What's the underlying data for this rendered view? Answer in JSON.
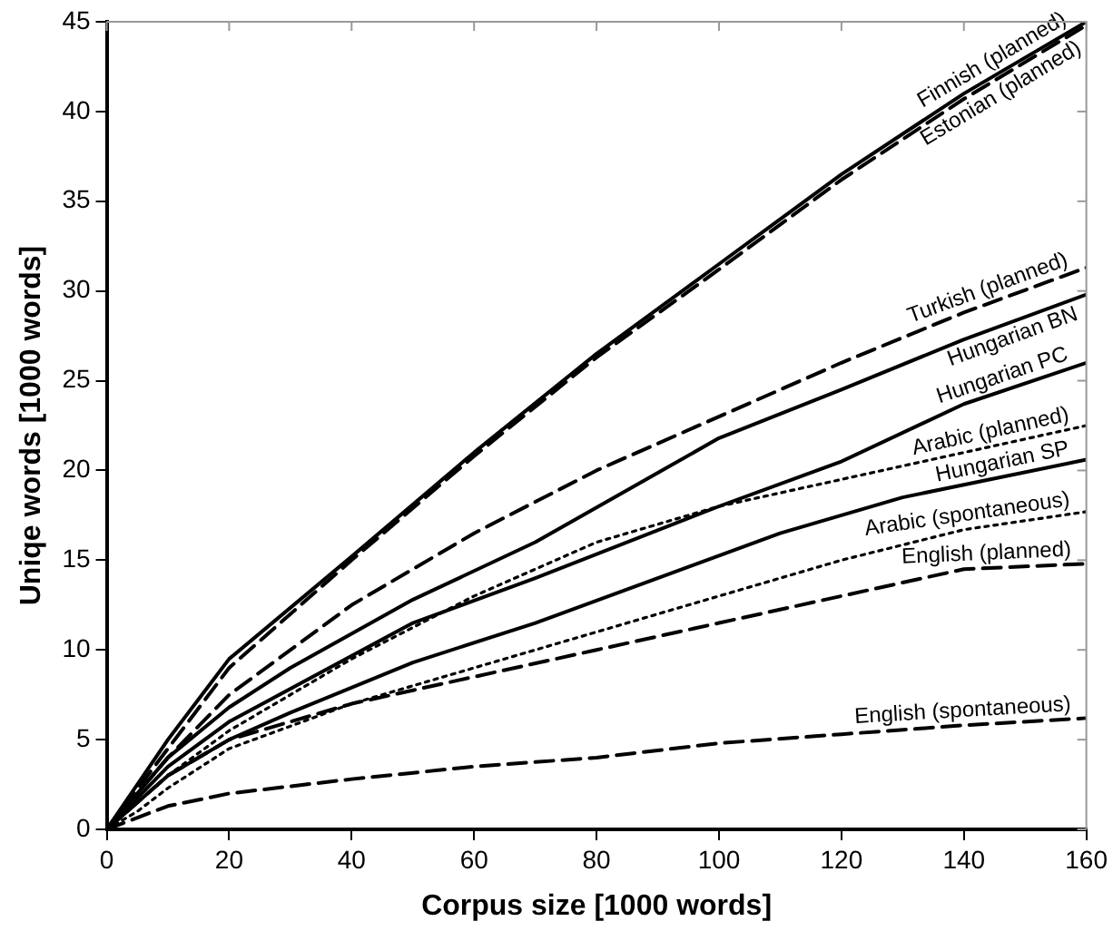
{
  "chart_data": {
    "type": "line",
    "xlabel": "Corpus size [1000 words]",
    "ylabel": "Uniqe words [1000 words]",
    "xlim": [
      0,
      160
    ],
    "xticks": [
      0,
      20,
      40,
      60,
      80,
      100,
      120,
      140,
      160
    ],
    "ylim": [
      0,
      45
    ],
    "yticks": [
      0,
      5,
      10,
      15,
      20,
      25,
      30,
      35,
      40,
      45
    ],
    "grid": false,
    "legend": false,
    "marker": "none",
    "series": [
      {
        "name": "Finnish (planned)",
        "color": "#000000",
        "line_style": "solid",
        "x": [
          0,
          10,
          20,
          40,
          60,
          80,
          100,
          120,
          140,
          160
        ],
        "values": [
          0,
          5,
          9.5,
          15.2,
          21,
          26.5,
          31.5,
          36.5,
          41,
          45
        ]
      },
      {
        "name": "Estonian (planned)",
        "color": "#000000",
        "line_style": "dashed",
        "x": [
          0,
          10,
          20,
          40,
          60,
          80,
          100,
          120,
          140,
          160
        ],
        "values": [
          0,
          4.5,
          9,
          15,
          20.8,
          26.3,
          31.2,
          36.2,
          40.7,
          44.8
        ]
      },
      {
        "name": "Turkish (planned)",
        "color": "#000000",
        "line_style": "dashed",
        "x": [
          0,
          10,
          20,
          40,
          60,
          80,
          100,
          120,
          140,
          160
        ],
        "values": [
          0,
          4,
          7.5,
          12.5,
          16.5,
          20,
          23,
          26,
          28.8,
          31.3
        ]
      },
      {
        "name": "Hungarian BN",
        "color": "#000000",
        "line_style": "solid",
        "x": [
          0,
          10,
          20,
          30,
          50,
          70,
          100,
          120,
          140,
          160
        ],
        "values": [
          0,
          4,
          6.8,
          9,
          12.8,
          16,
          21.8,
          24.5,
          27.3,
          29.8
        ]
      },
      {
        "name": "Hungarian PC",
        "color": "#000000",
        "line_style": "solid",
        "x": [
          0,
          10,
          20,
          50,
          70,
          100,
          120,
          140,
          160
        ],
        "values": [
          0,
          3.5,
          6,
          11.5,
          14,
          18,
          20.5,
          23.7,
          26
        ]
      },
      {
        "name": "Arabic (planned)",
        "color": "#000000",
        "line_style": "dotted",
        "x": [
          0,
          10,
          20,
          40,
          60,
          80,
          100,
          120,
          140,
          160
        ],
        "values": [
          0,
          3,
          5.5,
          9.5,
          13,
          16,
          18,
          19.5,
          21,
          22.5
        ]
      },
      {
        "name": "Hungarian SP",
        "color": "#000000",
        "line_style": "solid",
        "x": [
          0,
          10,
          20,
          30,
          50,
          70,
          90,
          110,
          130,
          160
        ],
        "values": [
          0,
          3,
          5,
          6.5,
          9.3,
          11.5,
          14,
          16.5,
          18.5,
          20.6
        ]
      },
      {
        "name": "Arabic (spontaneous)",
        "color": "#000000",
        "line_style": "dotted",
        "x": [
          0,
          5,
          10,
          20,
          40,
          60,
          80,
          100,
          120,
          140,
          160
        ],
        "values": [
          0,
          1,
          2.3,
          4.5,
          7,
          9,
          11,
          13,
          15,
          16.7,
          17.7
        ]
      },
      {
        "name": "English (planned)",
        "color": "#000000",
        "line_style": "dashed",
        "x": [
          0,
          10,
          20,
          40,
          60,
          80,
          100,
          120,
          140,
          160
        ],
        "values": [
          0,
          3,
          5,
          7,
          8.5,
          10,
          11.5,
          13,
          14.5,
          14.8
        ]
      },
      {
        "name": "English (spontaneous)",
        "color": "#000000",
        "line_style": "dashed",
        "x": [
          0,
          10,
          20,
          40,
          60,
          80,
          100,
          120,
          140,
          160
        ],
        "values": [
          0,
          1.3,
          2,
          2.8,
          3.5,
          4,
          4.8,
          5.3,
          5.8,
          6.2
        ]
      }
    ]
  }
}
